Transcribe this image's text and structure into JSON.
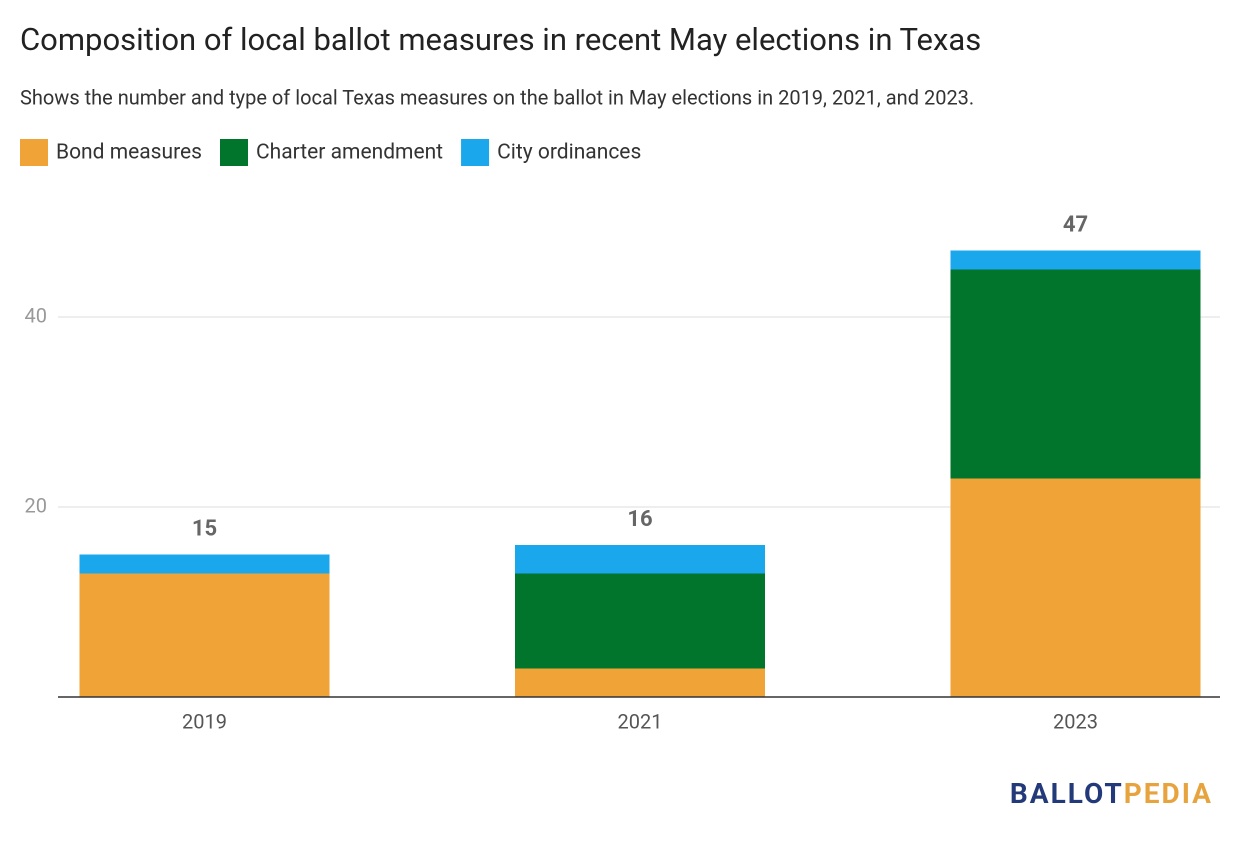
{
  "chart_data": {
    "type": "stacked-bar",
    "title": "Composition of local ballot measures in recent May elections in Texas",
    "subtitle": "Shows the number and type of local Texas measures on the ballot in May elections in 2019, 2021, and 2023.",
    "categories": [
      "2019",
      "2021",
      "2023"
    ],
    "series": [
      {
        "name": "Bond measures",
        "color": "#f0a336",
        "values": [
          13,
          3,
          23
        ]
      },
      {
        "name": "Charter amendment",
        "color": "#00752b",
        "values": [
          0,
          10,
          22
        ]
      },
      {
        "name": "City ordinances",
        "color": "#1aa7ec",
        "values": [
          2,
          3,
          2
        ]
      }
    ],
    "totals": [
      15,
      16,
      47
    ],
    "ylim": [
      0,
      50
    ],
    "yticks": [
      20,
      40
    ],
    "grid": true
  },
  "logo": {
    "first": "BALLOT",
    "second": "PEDIA"
  }
}
